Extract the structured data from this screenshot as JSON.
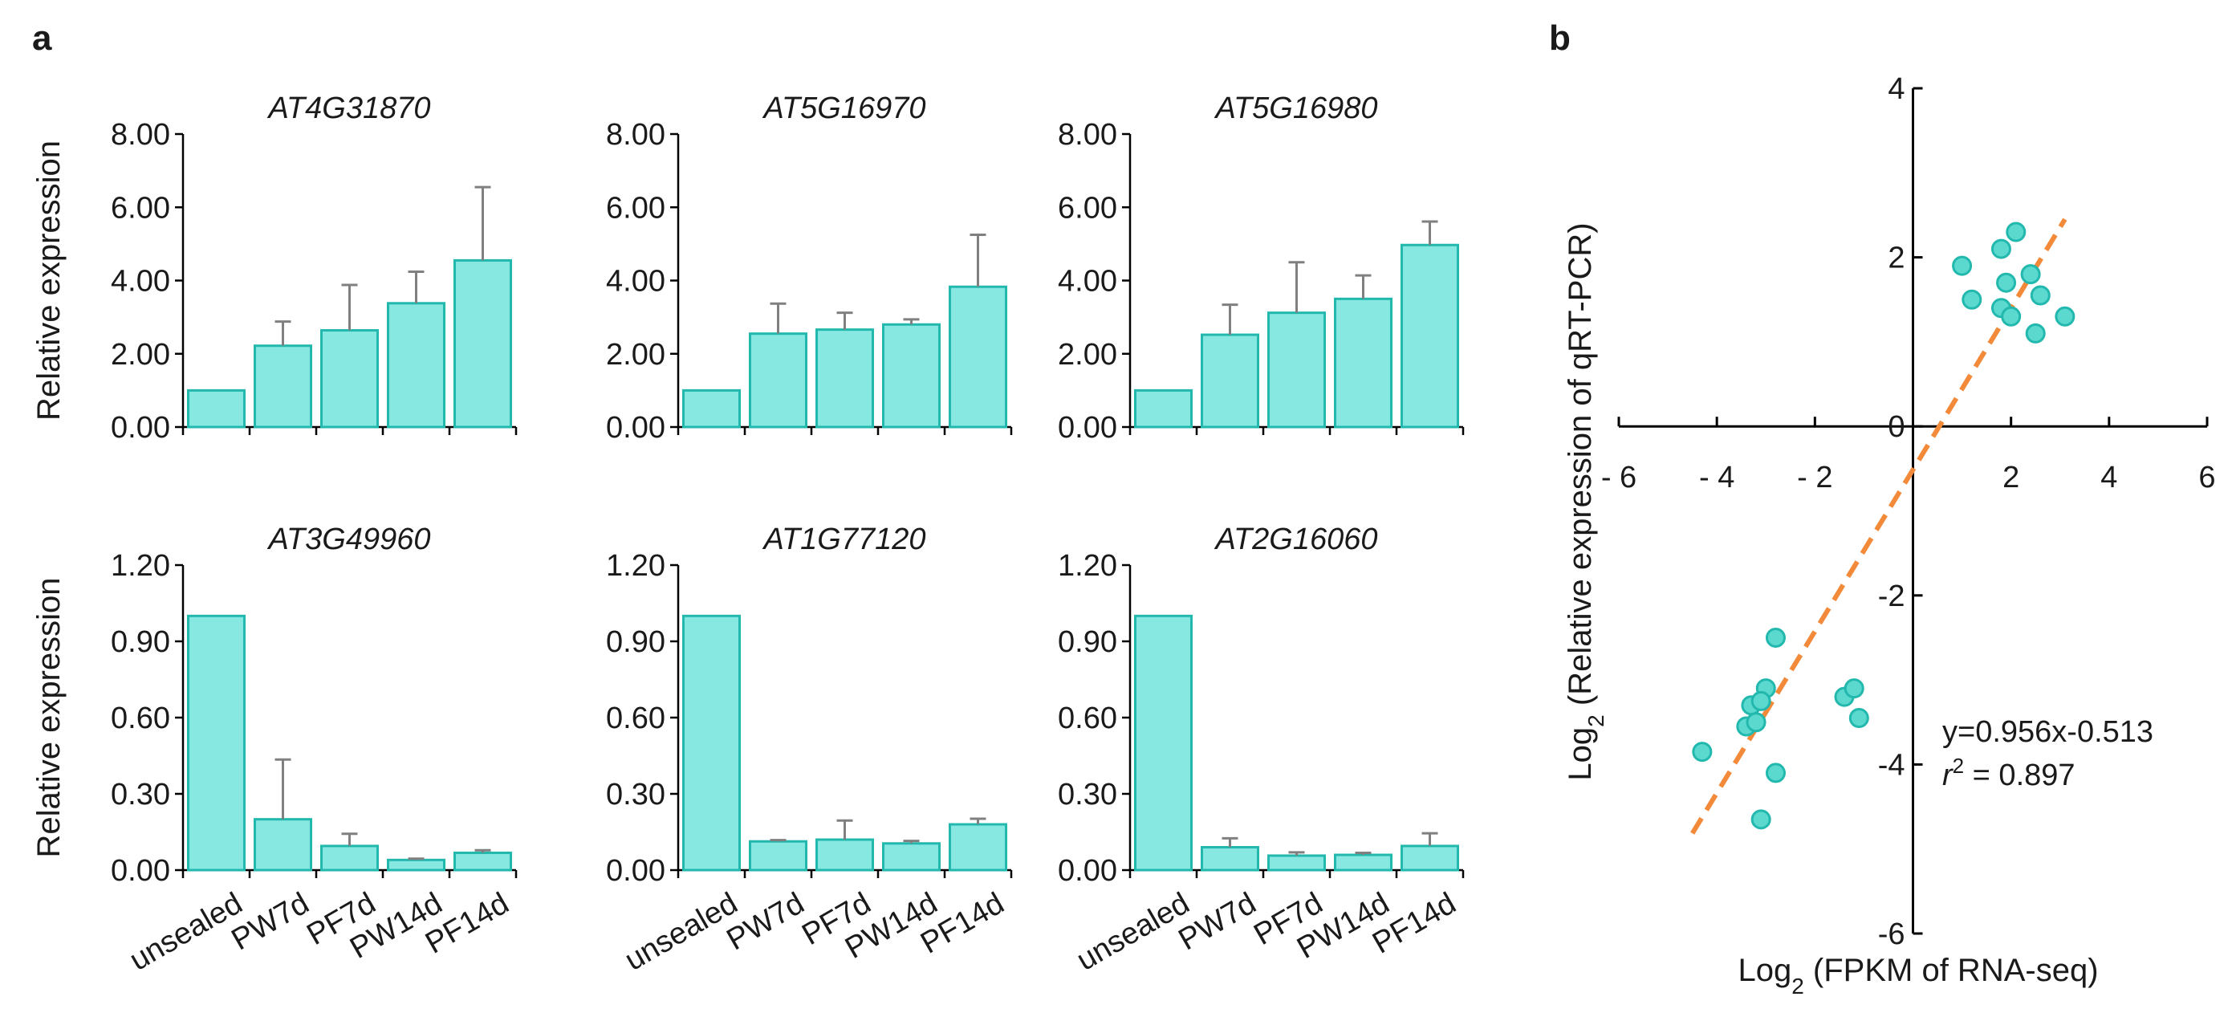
{
  "panel_labels": {
    "a": "a",
    "b": "b"
  },
  "colors": {
    "bar_fill": "#86E8E0",
    "bar_stroke": "#22B8AD",
    "error_bar": "#808080",
    "axis": "#000000",
    "point_fill": "#5CD9CF",
    "point_stroke": "#22B8AD",
    "fit_line": "#F28A3A"
  },
  "chart_data": [
    {
      "type": "bar",
      "title": "AT4G31870",
      "ylabel": "Relative expression",
      "categories": [
        "unsealed",
        "PW7d",
        "PF7d",
        "PW14d",
        "PF14d"
      ],
      "values": [
        1.0,
        2.22,
        2.64,
        3.38,
        4.55
      ],
      "errors": [
        0,
        0.66,
        1.24,
        0.86,
        2.0
      ],
      "ylim": [
        0,
        8
      ],
      "yticks": [
        "0.00",
        "2.00",
        "4.00",
        "6.00",
        "8.00"
      ],
      "show_xlabels": false
    },
    {
      "type": "bar",
      "title": "AT5G16970",
      "ylabel": "",
      "categories": [
        "unsealed",
        "PW7d",
        "PF7d",
        "PW14d",
        "PF14d"
      ],
      "values": [
        1.0,
        2.55,
        2.66,
        2.8,
        3.83
      ],
      "errors": [
        0,
        0.82,
        0.46,
        0.14,
        1.42
      ],
      "ylim": [
        0,
        8
      ],
      "yticks": [
        "0.00",
        "2.00",
        "4.00",
        "6.00",
        "8.00"
      ],
      "show_xlabels": false
    },
    {
      "type": "bar",
      "title": "AT5G16980",
      "ylabel": "",
      "categories": [
        "unsealed",
        "PW7d",
        "PF7d",
        "PW14d",
        "PF14d"
      ],
      "values": [
        1.0,
        2.52,
        3.12,
        3.5,
        4.97
      ],
      "errors": [
        0,
        0.82,
        1.38,
        0.64,
        0.64
      ],
      "ylim": [
        0,
        8
      ],
      "yticks": [
        "0.00",
        "2.00",
        "4.00",
        "6.00",
        "8.00"
      ],
      "show_xlabels": false
    },
    {
      "type": "bar",
      "title": "AT3G49960",
      "ylabel": "Relative expression",
      "categories": [
        "unsealed",
        "PW7d",
        "PF7d",
        "PW14d",
        "PF14d"
      ],
      "values": [
        1.0,
        0.2,
        0.095,
        0.04,
        0.068
      ],
      "errors": [
        0,
        0.235,
        0.048,
        0.005,
        0.01
      ],
      "ylim": [
        0,
        1.2
      ],
      "yticks": [
        "0.00",
        "0.30",
        "0.60",
        "0.90",
        "1.20"
      ],
      "show_xlabels": true
    },
    {
      "type": "bar",
      "title": "AT1G77120",
      "ylabel": "",
      "categories": [
        "unsealed",
        "PW7d",
        "PF7d",
        "PW14d",
        "PF14d"
      ],
      "values": [
        1.0,
        0.113,
        0.12,
        0.105,
        0.18
      ],
      "errors": [
        0,
        0.005,
        0.075,
        0.01,
        0.022
      ],
      "ylim": [
        0,
        1.2
      ],
      "yticks": [
        "0.00",
        "0.30",
        "0.60",
        "0.90",
        "1.20"
      ],
      "show_xlabels": true
    },
    {
      "type": "bar",
      "title": "AT2G16060",
      "ylabel": "",
      "categories": [
        "unsealed",
        "PW7d",
        "PF7d",
        "PW14d",
        "PF14d"
      ],
      "values": [
        1.0,
        0.09,
        0.057,
        0.06,
        0.095
      ],
      "errors": [
        0,
        0.035,
        0.013,
        0.008,
        0.05
      ],
      "ylim": [
        0,
        1.2
      ],
      "yticks": [
        "0.00",
        "0.30",
        "0.60",
        "0.90",
        "1.20"
      ],
      "show_xlabels": true
    },
    {
      "type": "scatter",
      "xlabel_prefix": "Log",
      "xlabel_sub": "2",
      "xlabel_rest": " (FPKM of RNA-seq)",
      "ylabel_prefix": "Log",
      "ylabel_sub": "2",
      "ylabel_rest": " (Relative expression of qRT-PCR)",
      "xlim": [
        -6,
        6
      ],
      "ylim": [
        -6,
        4
      ],
      "xticks": [
        -6,
        -4,
        -2,
        2,
        4,
        6
      ],
      "xtick_labels": [
        "- 6",
        "- 4",
        "- 2",
        "2",
        "4",
        "6"
      ],
      "yticks": [
        4,
        2,
        0,
        -2,
        -4,
        -6
      ],
      "ytick_labels": [
        "4",
        "2",
        "0",
        "-2",
        "-4",
        "-6"
      ],
      "x": [
        1.0,
        1.2,
        1.8,
        2.1,
        1.9,
        2.4,
        1.8,
        2.0,
        2.6,
        3.1,
        2.5,
        -2.8,
        -3.0,
        -3.3,
        -3.1,
        -3.4,
        -3.2,
        -4.3,
        -2.8,
        -3.1,
        -1.4,
        -1.2,
        -1.1
      ],
      "y": [
        1.9,
        1.5,
        2.1,
        2.3,
        1.7,
        1.8,
        1.4,
        1.3,
        1.55,
        1.3,
        1.1,
        -2.5,
        -3.1,
        -3.3,
        -3.25,
        -3.55,
        -3.5,
        -3.85,
        -4.1,
        -4.65,
        -3.2,
        -3.1,
        -3.45
      ],
      "fit": {
        "slope": 0.956,
        "intercept": -0.513,
        "x_range": [
          -4.5,
          3.1
        ]
      },
      "equation": "y=0.956x-0.513",
      "r2_prefix": "r",
      "r2_sup": "2",
      "r2_rest": " = 0.897"
    }
  ]
}
